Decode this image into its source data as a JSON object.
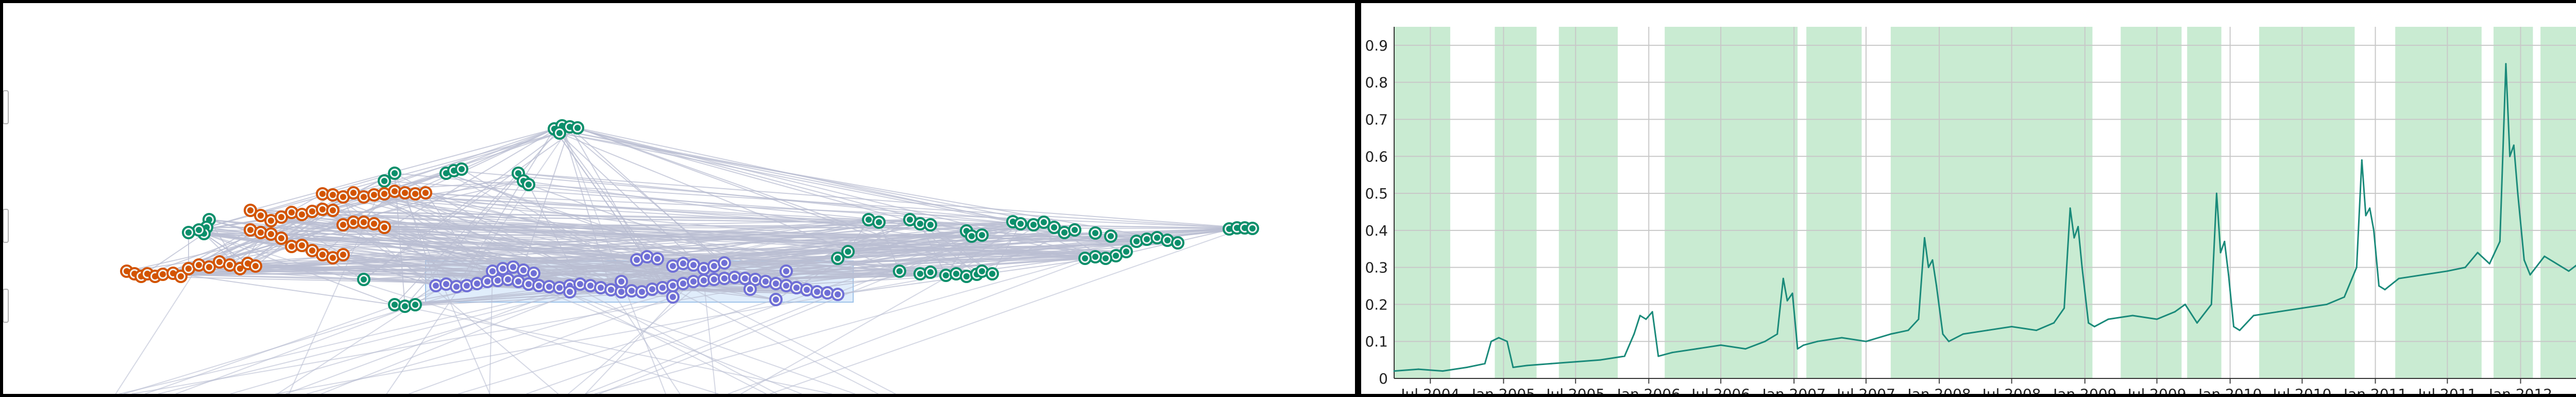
{
  "network": {
    "type": "network",
    "colors": {
      "green": "#0b8f6b",
      "orange": "#d35400",
      "blue": "#6f6fd6",
      "edge": "#b9bed2",
      "selection": "#c7dff7"
    },
    "clusters": [
      "green",
      "orange",
      "blue"
    ]
  },
  "chart_data": {
    "type": "line",
    "title": "",
    "xlabel": "",
    "ylabel": "",
    "ylim": [
      0,
      0.95
    ],
    "xlim": [
      "2004-04-01",
      "2012-11-01"
    ],
    "grid": true,
    "legend": "none",
    "line_color": "#1a8a7a",
    "band_color": "#c9ebd2",
    "y_ticks": [
      "0",
      "0.1",
      "0.2",
      "0.3",
      "0.4",
      "0.5",
      "0.6",
      "0.7",
      "0.8",
      "0.9"
    ],
    "x_tick_labels": [
      "Jul 2004",
      "Jan 2005",
      "Jul 2005",
      "Jan 2006",
      "Jul 2006",
      "Jan 2007",
      "Jul 2007",
      "Jan 2008",
      "Jul 2008",
      "Jan 2009",
      "Jul 2009",
      "Jan 2010",
      "Jul 2010",
      "Jan 2011",
      "Jul 2011",
      "Jan 2012"
    ],
    "x_tick_dates": [
      "2004-07-01",
      "2005-01-01",
      "2005-07-01",
      "2006-01-01",
      "2006-07-01",
      "2007-01-01",
      "2007-07-01",
      "2008-01-01",
      "2008-07-01",
      "2009-01-01",
      "2009-07-01",
      "2010-01-01",
      "2010-07-01",
      "2011-01-01",
      "2011-07-01",
      "2012-01-01"
    ],
    "shaded_periods": [
      [
        "2004-04-01",
        "2004-08-20"
      ],
      [
        "2004-12-10",
        "2005-03-25"
      ],
      [
        "2005-05-20",
        "2005-10-15"
      ],
      [
        "2006-02-10",
        "2007-01-10"
      ],
      [
        "2007-02-01",
        "2007-06-20"
      ],
      [
        "2007-09-01",
        "2009-01-20"
      ],
      [
        "2009-04-01",
        "2009-09-01"
      ],
      [
        "2009-09-15",
        "2009-12-10"
      ],
      [
        "2010-03-15",
        "2010-11-10"
      ],
      [
        "2011-02-20",
        "2011-09-25"
      ],
      [
        "2011-10-25",
        "2012-02-01"
      ],
      [
        "2012-02-20",
        "2012-11-01"
      ]
    ],
    "series": [
      {
        "x": [
          "2004-04-01",
          "2004-06-01",
          "2004-08-01",
          "2004-10-01",
          "2004-11-15",
          "2004-12-01",
          "2004-12-20",
          "2005-01-10",
          "2005-01-25",
          "2005-03-01",
          "2005-05-01",
          "2005-07-01",
          "2005-09-01",
          "2005-11-01",
          "2005-11-25",
          "2005-12-10",
          "2005-12-25",
          "2006-01-10",
          "2006-01-25",
          "2006-03-01",
          "2006-05-01",
          "2006-07-01",
          "2006-09-01",
          "2006-10-20",
          "2006-11-20",
          "2006-12-05",
          "2006-12-15",
          "2006-12-28",
          "2007-01-10",
          "2007-01-25",
          "2007-03-01",
          "2007-05-01",
          "2007-07-01",
          "2007-09-01",
          "2007-10-15",
          "2007-11-10",
          "2007-11-25",
          "2007-12-05",
          "2007-12-15",
          "2007-12-25",
          "2008-01-10",
          "2008-01-25",
          "2008-03-01",
          "2008-05-01",
          "2008-07-01",
          "2008-09-01",
          "2008-10-15",
          "2008-11-10",
          "2008-11-25",
          "2008-12-05",
          "2008-12-15",
          "2008-12-25",
          "2009-01-10",
          "2009-01-25",
          "2009-03-01",
          "2009-05-01",
          "2009-07-01",
          "2009-08-15",
          "2009-09-10",
          "2009-10-10",
          "2009-11-15",
          "2009-11-28",
          "2009-12-08",
          "2009-12-18",
          "2009-12-28",
          "2010-01-10",
          "2010-01-25",
          "2010-03-01",
          "2010-05-01",
          "2010-07-01",
          "2010-09-01",
          "2010-10-15",
          "2010-11-15",
          "2010-11-28",
          "2010-12-08",
          "2010-12-18",
          "2010-12-28",
          "2011-01-10",
          "2011-01-25",
          "2011-03-01",
          "2011-05-01",
          "2011-07-01",
          "2011-08-15",
          "2011-09-15",
          "2011-10-15",
          "2011-11-10",
          "2011-11-25",
          "2011-12-05",
          "2011-12-15",
          "2011-12-25",
          "2012-01-10",
          "2012-01-25",
          "2012-03-01",
          "2012-05-01",
          "2012-07-01",
          "2012-09-01",
          "2012-11-01"
        ],
        "y": [
          0.02,
          0.025,
          0.02,
          0.03,
          0.04,
          0.1,
          0.11,
          0.1,
          0.03,
          0.035,
          0.04,
          0.045,
          0.05,
          0.06,
          0.12,
          0.17,
          0.16,
          0.18,
          0.06,
          0.07,
          0.08,
          0.09,
          0.08,
          0.1,
          0.12,
          0.27,
          0.21,
          0.23,
          0.08,
          0.09,
          0.1,
          0.11,
          0.1,
          0.12,
          0.13,
          0.16,
          0.38,
          0.3,
          0.32,
          0.25,
          0.12,
          0.1,
          0.12,
          0.13,
          0.14,
          0.13,
          0.15,
          0.19,
          0.46,
          0.38,
          0.41,
          0.3,
          0.15,
          0.14,
          0.16,
          0.17,
          0.16,
          0.18,
          0.2,
          0.15,
          0.2,
          0.5,
          0.34,
          0.37,
          0.28,
          0.14,
          0.13,
          0.17,
          0.18,
          0.19,
          0.2,
          0.22,
          0.3,
          0.59,
          0.44,
          0.46,
          0.4,
          0.25,
          0.24,
          0.27,
          0.28,
          0.29,
          0.3,
          0.34,
          0.31,
          0.37,
          0.85,
          0.6,
          0.63,
          0.5,
          0.32,
          0.28,
          0.33,
          0.29,
          0.34,
          0.3,
          0.31
        ]
      }
    ]
  }
}
